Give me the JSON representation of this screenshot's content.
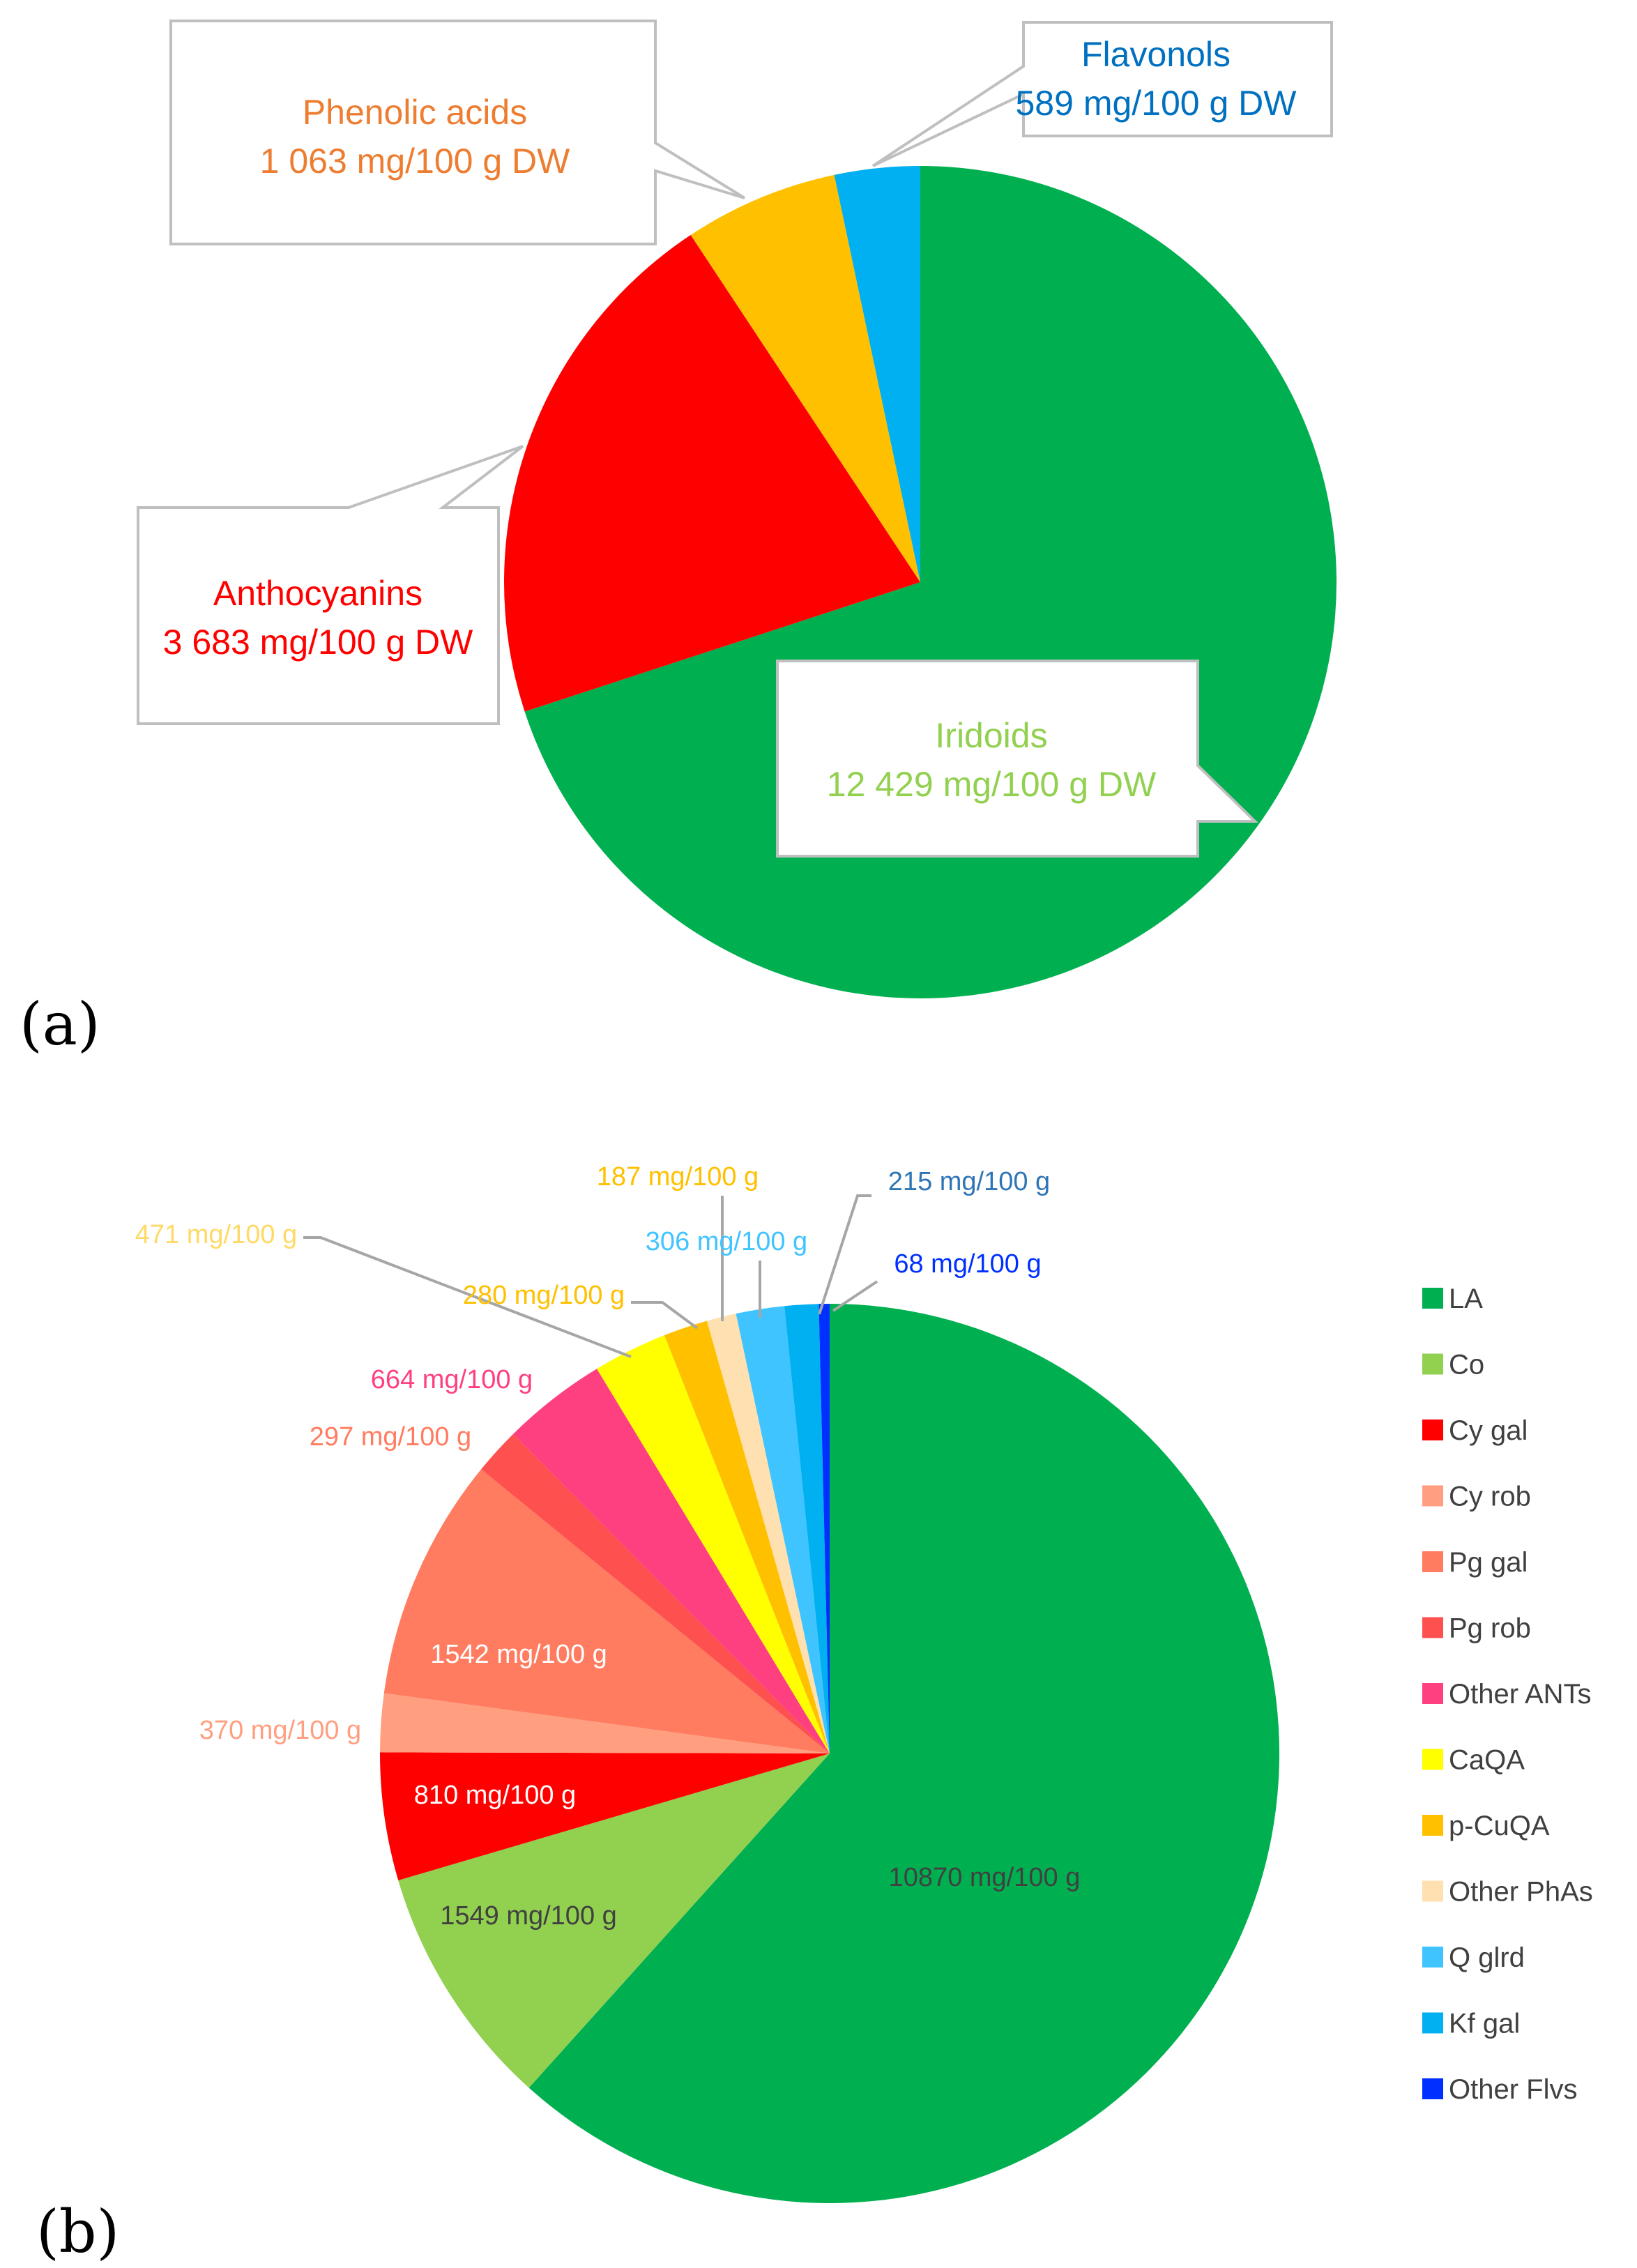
{
  "chart_data": [
    {
      "type": "pie",
      "panel_label": "(a)",
      "title": "",
      "unit": "mg/100 g DW",
      "start": "12 o'clock, clockwise",
      "categories": [
        "Iridoids",
        "Anthocyanins",
        "Phenolic acids",
        "Flavonols"
      ],
      "values": [
        12429,
        3683,
        1063,
        589
      ],
      "colors": [
        "#00b050",
        "#ff0000",
        "#ffc000",
        "#00b0f0"
      ],
      "label_colors": [
        "#92d050",
        "#ff0000",
        "#ed7d31",
        "#0070c0"
      ],
      "value_labels": [
        "12 429 mg/100 g DW",
        "3 683 mg/100 g DW",
        "1 063 mg/100 g DW",
        "589 mg/100 g DW"
      ]
    },
    {
      "type": "pie",
      "panel_label": "(b)",
      "title": "",
      "unit": "mg/100 g",
      "start": "12 o'clock, clockwise",
      "categories": [
        "LA",
        "Co",
        "Cy gal",
        "Cy rob",
        "Pg gal",
        "Pg rob",
        "Other ANTs",
        "CaQA",
        "p-CuQA",
        "Other PhAs",
        "Q glrd",
        "Kf gal",
        "Other Flvs"
      ],
      "values": [
        10870,
        1549,
        810,
        370,
        1542,
        297,
        664,
        471,
        280,
        187,
        306,
        215,
        68
      ],
      "colors": [
        "#00b050",
        "#92d050",
        "#ff0000",
        "#ff9f80",
        "#ff7c60",
        "#ff5050",
        "#ff4080",
        "#ffff00",
        "#ffc000",
        "#ffe0b0",
        "#40c4ff",
        "#00b0f0",
        "#0030ff"
      ],
      "label_colors": [
        "#404040",
        "#404040",
        "#ffffff",
        "#ff9f80",
        "#ffffff",
        "#ff7c60",
        "#ff4080",
        "#ffd966",
        "#ffc000",
        "#ffc000",
        "#40c4ff",
        "#2e75b6",
        "#0030ff"
      ],
      "value_labels": [
        "10870 mg/100 g",
        "1549 mg/100 g",
        "810 mg/100 g",
        "370 mg/100 g",
        "1542 mg/100 g",
        "297 mg/100 g",
        "664 mg/100 g",
        "471 mg/100 g",
        "280 mg/100 g",
        "187 mg/100 g",
        "306 mg/100 g",
        "215 mg/100 g",
        "68 mg/100 g"
      ],
      "legend": {
        "position": "right",
        "entries": [
          "LA",
          "Co",
          "Cy gal",
          "Cy rob",
          "Pg gal",
          "Pg rob",
          "Other ANTs",
          "CaQA",
          "p-CuQA",
          "Other PhAs",
          "Q glrd",
          "Kf gal",
          "Other Flvs"
        ]
      }
    }
  ]
}
